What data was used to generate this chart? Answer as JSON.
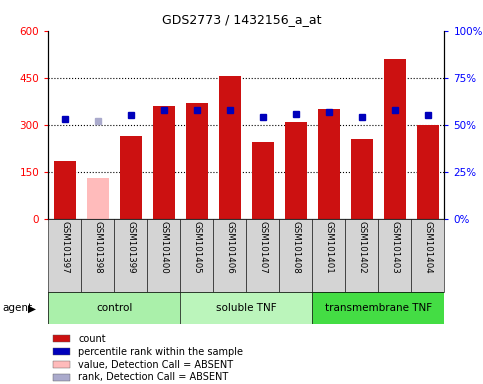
{
  "title": "GDS2773 / 1432156_a_at",
  "samples": [
    "GSM101397",
    "GSM101398",
    "GSM101399",
    "GSM101400",
    "GSM101405",
    "GSM101406",
    "GSM101407",
    "GSM101408",
    "GSM101401",
    "GSM101402",
    "GSM101403",
    "GSM101404"
  ],
  "count_values": [
    185,
    130,
    265,
    360,
    370,
    455,
    245,
    310,
    350,
    255,
    510,
    300
  ],
  "count_absent": [
    false,
    true,
    false,
    false,
    false,
    false,
    false,
    false,
    false,
    false,
    false,
    false
  ],
  "percentile_values": [
    53,
    52,
    55,
    58,
    58,
    58,
    54,
    56,
    57,
    54,
    58,
    55
  ],
  "percentile_absent": [
    false,
    true,
    false,
    false,
    false,
    false,
    false,
    false,
    false,
    false,
    false,
    false
  ],
  "groups": [
    {
      "label": "control",
      "start": 0,
      "end": 4,
      "color": "#aaf0aa"
    },
    {
      "label": "soluble TNF",
      "start": 4,
      "end": 8,
      "color": "#bbf5bb"
    },
    {
      "label": "transmembrane TNF",
      "start": 8,
      "end": 12,
      "color": "#44dd44"
    }
  ],
  "bar_color_normal": "#cc1111",
  "bar_color_absent": "#ffbbbb",
  "dot_color_normal": "#0000bb",
  "dot_color_absent": "#aaaacc",
  "ylim_left": [
    0,
    600
  ],
  "ylim_right": [
    0,
    100
  ],
  "yticks_left": [
    0,
    150,
    300,
    450,
    600
  ],
  "ytick_labels_left": [
    "0",
    "150",
    "300",
    "450",
    "600"
  ],
  "yticks_right": [
    0,
    25,
    50,
    75,
    100
  ],
  "ytick_labels_right": [
    "0%",
    "25%",
    "50%",
    "75%",
    "100%"
  ],
  "legend_items": [
    {
      "label": "count",
      "color": "#cc1111"
    },
    {
      "label": "percentile rank within the sample",
      "color": "#0000bb"
    },
    {
      "label": "value, Detection Call = ABSENT",
      "color": "#ffbbbb"
    },
    {
      "label": "rank, Detection Call = ABSENT",
      "color": "#aaaacc"
    }
  ]
}
